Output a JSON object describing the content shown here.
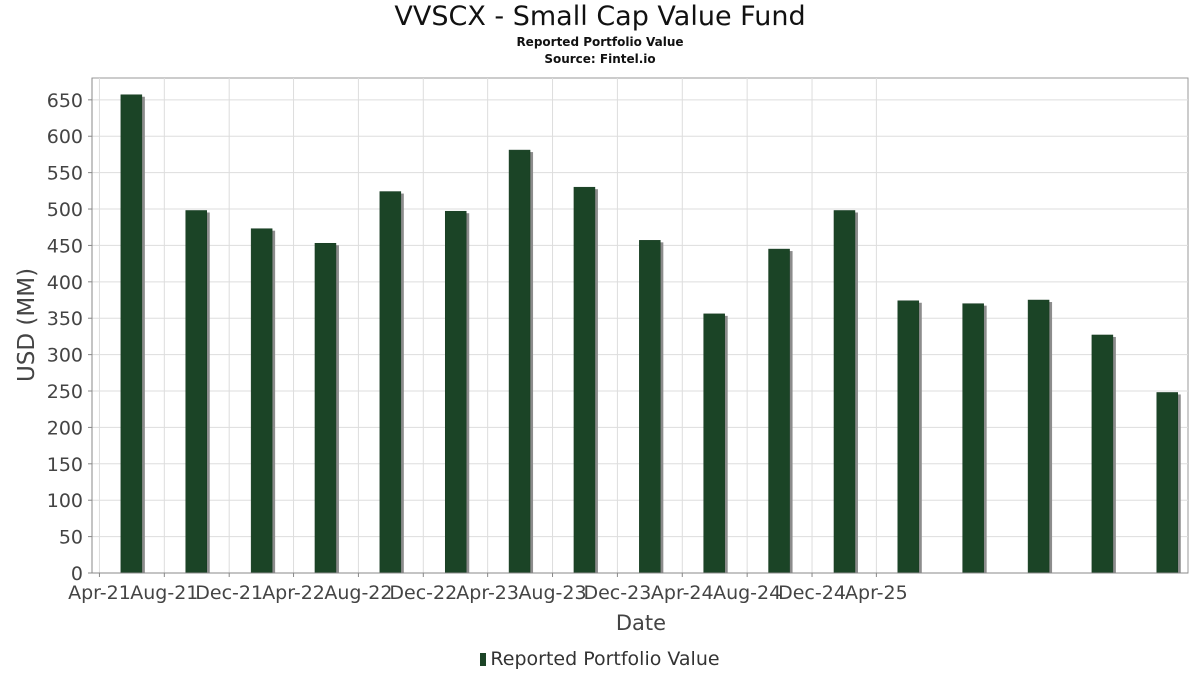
{
  "chart_data": {
    "type": "bar",
    "title": "VVSCX - Small Cap Value Fund",
    "subtitle": "Reported Portfolio Value",
    "source": "Source: Fintel.io",
    "xlabel": "Date",
    "ylabel": "USD (MM)",
    "ylim": [
      0,
      680
    ],
    "yticks": [
      0,
      50,
      100,
      150,
      200,
      250,
      300,
      350,
      400,
      450,
      500,
      550,
      600,
      650
    ],
    "x_tick_labels": [
      "Apr-21",
      "Aug-21",
      "Dec-21",
      "Apr-22",
      "Aug-22",
      "Dec-22",
      "Apr-23",
      "Aug-23",
      "Dec-23",
      "Apr-24",
      "Aug-24",
      "Dec-24",
      "Apr-25"
    ],
    "grid": true,
    "legend_position": "bottom",
    "series": [
      {
        "name": "Reported Portfolio Value",
        "color": "#1b4426",
        "points": [
          {
            "date": "2021-05-31",
            "value": 657
          },
          {
            "date": "2021-09-30",
            "value": 498
          },
          {
            "date": "2022-01-31",
            "value": 473
          },
          {
            "date": "2022-05-31",
            "value": 453
          },
          {
            "date": "2022-09-30",
            "value": 524
          },
          {
            "date": "2023-01-31",
            "value": 497
          },
          {
            "date": "2023-05-31",
            "value": 581
          },
          {
            "date": "2023-09-30",
            "value": 530
          },
          {
            "date": "2024-01-31",
            "value": 457
          },
          {
            "date": "2024-05-31",
            "value": 356
          },
          {
            "date": "2024-09-30",
            "value": 445
          },
          {
            "date": "2025-01-31",
            "value": 498
          },
          {
            "date": "2025-05-31",
            "value": 374
          },
          {
            "date": "2025-09-30",
            "value": 370
          },
          {
            "date": "2026-01-31",
            "value": 375
          },
          {
            "date": "2026-05-31",
            "value": 327
          },
          {
            "date": "2026-09-30",
            "value": 248
          }
        ]
      }
    ]
  }
}
